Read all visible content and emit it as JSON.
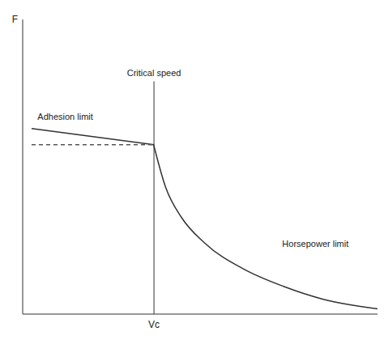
{
  "chart_data": {
    "type": "line",
    "y_label": "F",
    "x_marker_label": "Vc",
    "xlim": [
      0,
      10
    ],
    "ylim": [
      0,
      10
    ],
    "xticks": [],
    "yticks": [],
    "tick_labels": false,
    "grid": false,
    "critical_speed": {
      "label": "Critical speed",
      "x": 3.7,
      "y_top": 7.9
    },
    "series": [
      {
        "name": "Adhesion limit",
        "color": "#333333",
        "line_style": "solid",
        "x": [
          0.25,
          3.7
        ],
        "values": [
          6.3,
          5.75
        ]
      },
      {
        "color": "#555555",
        "line_style": "dashed",
        "x": [
          0.25,
          3.7
        ],
        "values": [
          5.75,
          5.75
        ]
      },
      {
        "name": "Horsepower limit",
        "color": "#333333",
        "line_style": "solid",
        "x": [
          3.69,
          4.03,
          4.47,
          5.13,
          6.24,
          7.35,
          8.45,
          10.0
        ],
        "values": [
          5.75,
          4.3,
          3.29,
          2.41,
          1.52,
          0.94,
          0.51,
          0.18
        ]
      }
    ]
  }
}
